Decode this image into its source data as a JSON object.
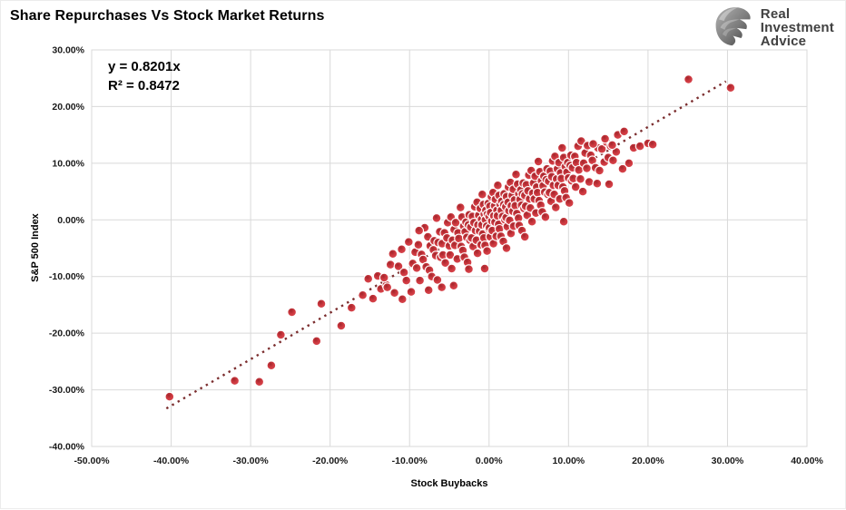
{
  "header": {
    "title": "Share Repurchases Vs Stock Market Returns"
  },
  "logo": {
    "icon": "eagle-icon",
    "brand_lines": [
      "Real",
      "Investment",
      "Advice"
    ]
  },
  "colors": {
    "marker_fill": "#CE3940",
    "marker_core": "#A3262C",
    "marker_edge": "#FFFFFF",
    "trendline": "#7B2D2E",
    "gridline": "#D9D9D9",
    "text": "#1A1A1A",
    "logo_text": "#414141"
  },
  "chart_data": {
    "type": "scatter",
    "title": "Share Repurchases Vs Stock Market Returns",
    "xlabel": "Stock Buybacks",
    "ylabel": "S&P 500 Index",
    "xlim": [
      -50,
      40
    ],
    "ylim": [
      -40,
      30
    ],
    "x_ticks": [
      -50,
      -40,
      -30,
      -20,
      -10,
      0,
      10,
      20,
      30,
      40
    ],
    "x_tick_labels": [
      "-50.00%",
      "-40.00%",
      "-30.00%",
      "-20.00%",
      "-10.00%",
      "0.00%",
      "10.00%",
      "20.00%",
      "30.00%",
      "40.00%"
    ],
    "y_ticks": [
      30,
      20,
      10,
      0,
      -10,
      -20,
      -30,
      -40
    ],
    "y_tick_labels": [
      "30.00%",
      "20.00%",
      "10.00%",
      "0.00%",
      "-10.00%",
      "-20.00%",
      "-30.00%",
      "-40.00%"
    ],
    "grid": true,
    "legend": "none",
    "annotation": {
      "line1": "y = 0.8201x",
      "line2": "R² = 0.8472"
    },
    "trendline": {
      "type": "linear",
      "slope": 0.8201,
      "intercept": 0,
      "r_squared": 0.8472,
      "x_start": -40.6,
      "x_end": 29.8,
      "style": "dotted"
    },
    "points": [
      [
        -40.2,
        -31.2
      ],
      [
        -32,
        -28.4
      ],
      [
        -28.9,
        -28.6
      ],
      [
        -27.4,
        -25.7
      ],
      [
        -26.2,
        -20.3
      ],
      [
        -24.8,
        -16.3
      ],
      [
        -21.7,
        -21.4
      ],
      [
        -21.1,
        -14.8
      ],
      [
        -18.6,
        -18.7
      ],
      [
        -17.3,
        -15.5
      ],
      [
        -15.9,
        -13.3
      ],
      [
        -15.2,
        -10.4
      ],
      [
        -14.6,
        -13.9
      ],
      [
        -14,
        -9.9
      ],
      [
        -13.6,
        -12.2
      ],
      [
        -12.9,
        -11.5
      ],
      [
        -13.2,
        -10.2
      ],
      [
        -12.8,
        -11.9
      ],
      [
        -12.4,
        -7.9
      ],
      [
        -11.9,
        -12.9
      ],
      [
        -11.4,
        -8.2
      ],
      [
        -11,
        -5.2
      ],
      [
        -10.7,
        -9.3
      ],
      [
        -10.4,
        -10.7
      ],
      [
        -10.1,
        -3.9
      ],
      [
        -9.8,
        -12.7
      ],
      [
        -9.6,
        -7.7
      ],
      [
        -9.3,
        -5.7
      ],
      [
        -9.1,
        -8.5
      ],
      [
        -8.9,
        -4.4
      ],
      [
        -8.7,
        -10.7
      ],
      [
        -8.5,
        -6.1
      ],
      [
        -8.3,
        -7
      ],
      [
        -8.1,
        -1.4
      ],
      [
        -7.9,
        -8.3
      ],
      [
        -7.7,
        -3
      ],
      [
        -7.5,
        -8.9
      ],
      [
        -7.4,
        -4.6
      ],
      [
        -7.2,
        -10
      ],
      [
        -7,
        -5.3
      ],
      [
        -6.9,
        -3.7
      ],
      [
        -6.7,
        -6.3
      ],
      [
        -6.5,
        -10.6
      ],
      [
        -6.4,
        -4
      ],
      [
        -6.2,
        -2.1
      ],
      [
        -6.1,
        -6.6
      ],
      [
        -5.9,
        -4.2
      ],
      [
        -5.8,
        -6.2
      ],
      [
        -5.6,
        -2.3
      ],
      [
        -5.5,
        -7.6
      ],
      [
        -5.3,
        -3.2
      ],
      [
        -5.2,
        -0.5
      ],
      [
        -5,
        -4.6
      ],
      [
        -4.9,
        -6.2
      ],
      [
        -4.8,
        0.5
      ],
      [
        -4.7,
        -8.6
      ],
      [
        -4.6,
        -3.6
      ],
      [
        -4.4,
        -1.7
      ],
      [
        -4.3,
        -4.5
      ],
      [
        -4.2,
        -0.5
      ],
      [
        -4,
        -6.9
      ],
      [
        -3.9,
        -2.3
      ],
      [
        -3.8,
        -3.3
      ],
      [
        -3.6,
        2.2
      ],
      [
        -3.5,
        -4.7
      ],
      [
        -3.4,
        0.5
      ],
      [
        -3.3,
        -5.4
      ],
      [
        -3.2,
        -1.1
      ],
      [
        -3.1,
        -6.6
      ],
      [
        -3,
        -2.1
      ],
      [
        -2.9,
        -0.4
      ],
      [
        -2.8,
        -3.1
      ],
      [
        -2.7,
        -7.5
      ],
      [
        -2.6,
        -0.9
      ],
      [
        -2.5,
        0.9
      ],
      [
        -2.4,
        -3.6
      ],
      [
        -2.3,
        -1.3
      ],
      [
        -2.2,
        -3.2
      ],
      [
        -2.1,
        0.6
      ],
      [
        -2,
        -4.7
      ],
      [
        -1.9,
        -0.5
      ],
      [
        -1.8,
        2.3
      ],
      [
        -1.7,
        -1.9
      ],
      [
        -1.6,
        -3.6
      ],
      [
        -1.5,
        3.1
      ],
      [
        -1.45,
        -5.9
      ],
      [
        -1.4,
        -0.9
      ],
      [
        -1.3,
        0.8
      ],
      [
        -1.2,
        -2
      ],
      [
        -1.1,
        2
      ],
      [
        -1,
        -4.4
      ],
      [
        -0.95,
        0.1
      ],
      [
        -0.9,
        -0.9
      ],
      [
        -0.85,
        4.5
      ],
      [
        -0.8,
        -2.5
      ],
      [
        -0.7,
        2.7
      ],
      [
        -0.65,
        -3.2
      ],
      [
        -0.6,
        1
      ],
      [
        -0.5,
        -4.5
      ],
      [
        -0.45,
        0
      ],
      [
        -0.4,
        1.7
      ],
      [
        -0.3,
        -1.1
      ],
      [
        -0.25,
        -5.5
      ],
      [
        -0.2,
        1
      ],
      [
        -0.1,
        2.9
      ],
      [
        -0.05,
        -1.6
      ],
      [
        0,
        0.6
      ],
      [
        0.05,
        -1.4
      ],
      [
        0.1,
        2.4
      ],
      [
        0.15,
        -3
      ],
      [
        0.2,
        1.3
      ],
      [
        0.3,
        4.1
      ],
      [
        0.35,
        -0.2
      ],
      [
        0.4,
        -1.9
      ],
      [
        0.5,
        4.8
      ],
      [
        0.55,
        -4.2
      ],
      [
        0.6,
        0.7
      ],
      [
        0.7,
        2.5
      ],
      [
        0.75,
        -0.4
      ],
      [
        0.8,
        3.6
      ],
      [
        0.9,
        -2.9
      ],
      [
        1,
        1.7
      ],
      [
        1.05,
        0.7
      ],
      [
        1.1,
        6.1
      ],
      [
        1.2,
        -0.8
      ],
      [
        1.25,
        4.3
      ],
      [
        1.3,
        -1.6
      ],
      [
        1.4,
        2.7
      ],
      [
        1.5,
        -2.9
      ],
      [
        1.55,
        1.7
      ],
      [
        1.6,
        3.3
      ],
      [
        1.7,
        0.6
      ],
      [
        1.8,
        -3.8
      ],
      [
        1.85,
        2.7
      ],
      [
        1.9,
        4.6
      ],
      [
        2,
        0
      ],
      [
        2.1,
        2.3
      ],
      [
        2.15,
        0.4
      ],
      [
        2.2,
        4.1
      ],
      [
        2.3,
        -1.2
      ],
      [
        2.4,
        3.1
      ],
      [
        2.45,
        5.8
      ],
      [
        2.5,
        1.6
      ],
      [
        2.6,
        -0.1
      ],
      [
        2.7,
        6.6
      ],
      [
        2.75,
        -2.4
      ],
      [
        2.8,
        2.5
      ],
      [
        2.9,
        4.3
      ],
      [
        3,
        1.5
      ],
      [
        3.05,
        5.4
      ],
      [
        3.1,
        -1.1
      ],
      [
        3.2,
        3.5
      ],
      [
        3.3,
        2.5
      ],
      [
        3.4,
        8
      ],
      [
        3.5,
        1.1
      ],
      [
        3.6,
        6.3
      ],
      [
        3.7,
        0.3
      ],
      [
        3.75,
        4.6
      ],
      [
        3.8,
        -1
      ],
      [
        3.9,
        3.6
      ],
      [
        4,
        5.3
      ],
      [
        4.1,
        2.6
      ],
      [
        4.15,
        -1.9
      ],
      [
        4.2,
        4.6
      ],
      [
        4.3,
        6.5
      ],
      [
        4.4,
        2
      ],
      [
        4.5,
        4.3
      ],
      [
        4.6,
        2.4
      ],
      [
        4.7,
        6.2
      ],
      [
        4.8,
        0.8
      ],
      [
        4.9,
        5.1
      ],
      [
        5,
        7.9
      ],
      [
        5.1,
        3.7
      ],
      [
        5.2,
        2.1
      ],
      [
        5.3,
        8.7
      ],
      [
        5.4,
        -0.3
      ],
      [
        5.5,
        4.7
      ],
      [
        5.6,
        6.5
      ],
      [
        5.7,
        3.7
      ],
      [
        5.8,
        7.7
      ],
      [
        5.9,
        1.2
      ],
      [
        6,
        5.8
      ],
      [
        6.1,
        4.8
      ],
      [
        6.2,
        10.3
      ],
      [
        6.3,
        3.4
      ],
      [
        6.4,
        8.5
      ],
      [
        6.5,
        2.6
      ],
      [
        6.6,
        6.9
      ],
      [
        6.7,
        1.4
      ],
      [
        6.8,
        6
      ],
      [
        6.9,
        7.7
      ],
      [
        7,
        4.9
      ],
      [
        7.1,
        0.5
      ],
      [
        7.2,
        7.1
      ],
      [
        7.3,
        9
      ],
      [
        7.4,
        4.5
      ],
      [
        7.5,
        6.8
      ],
      [
        7.6,
        4.8
      ],
      [
        7.7,
        8.6
      ],
      [
        7.8,
        3.3
      ],
      [
        7.9,
        7.6
      ],
      [
        8,
        10.4
      ],
      [
        8.1,
        6.1
      ],
      [
        8.2,
        4.5
      ],
      [
        8.3,
        11.2
      ],
      [
        8.4,
        2.2
      ],
      [
        8.5,
        7.2
      ],
      [
        8.6,
        9
      ],
      [
        8.7,
        6.1
      ],
      [
        8.8,
        10.1
      ],
      [
        8.9,
        3.7
      ],
      [
        9,
        8.3
      ],
      [
        9.1,
        7.3
      ],
      [
        9.2,
        12.7
      ],
      [
        9.3,
        5.8
      ],
      [
        9.4,
        11
      ],
      [
        9.5,
        5.1
      ],
      [
        9.6,
        9.4
      ],
      [
        9.7,
        3.9
      ],
      [
        9.8,
        8.4
      ],
      [
        9.9,
        10.1
      ],
      [
        10,
        7.4
      ],
      [
        10.1,
        3
      ],
      [
        10.2,
        9.6
      ],
      [
        10.3,
        11.4
      ],
      [
        10.4,
        6.9
      ],
      [
        10.5,
        9.2
      ],
      [
        10.6,
        7.3
      ],
      [
        10.8,
        11.2
      ],
      [
        10.9,
        5.8
      ],
      [
        11,
        10.1
      ],
      [
        11.2,
        13
      ],
      [
        11.3,
        8.8
      ],
      [
        11.5,
        7.2
      ],
      [
        11.6,
        13.9
      ],
      [
        11.8,
        5
      ],
      [
        11.9,
        10
      ],
      [
        12.1,
        11.8
      ],
      [
        12.3,
        9.1
      ],
      [
        12.4,
        13.1
      ],
      [
        12.6,
        6.7
      ],
      [
        12.8,
        11.4
      ],
      [
        13,
        10.5
      ],
      [
        13.2,
        13.5
      ],
      [
        13.4,
        9.2
      ],
      [
        13.7,
        12.7
      ],
      [
        13.9,
        8.7
      ],
      [
        14.2,
        12.5
      ],
      [
        14.5,
        10.2
      ],
      [
        14.8,
        13.7
      ],
      [
        15,
        11
      ],
      [
        15.3,
        13
      ],
      [
        15.6,
        10.5
      ],
      [
        16,
        12
      ],
      [
        13.1,
        13.4
      ],
      [
        14.6,
        14.3
      ],
      [
        15.5,
        13.2
      ],
      [
        16.2,
        15
      ],
      [
        17,
        15.6
      ],
      [
        17.6,
        10
      ],
      [
        18.2,
        12.7
      ],
      [
        19,
        13
      ],
      [
        20,
        13.5
      ],
      [
        20.6,
        13.3
      ],
      [
        15.1,
        6.3
      ],
      [
        13.6,
        6.4
      ],
      [
        16.8,
        9
      ],
      [
        25.1,
        24.8
      ],
      [
        30.4,
        23.3
      ],
      [
        9.4,
        -0.3
      ],
      [
        4.5,
        -3
      ],
      [
        -5.95,
        -11.9
      ],
      [
        -4.45,
        -11.6
      ],
      [
        -2.55,
        -8.7
      ],
      [
        -7.6,
        -12.4
      ],
      [
        -0.55,
        -8.6
      ],
      [
        -10.9,
        -14
      ],
      [
        2.2,
        -5
      ],
      [
        -8.8,
        -1.9
      ],
      [
        -12.1,
        -6
      ],
      [
        -6.6,
        0.3
      ]
    ]
  }
}
